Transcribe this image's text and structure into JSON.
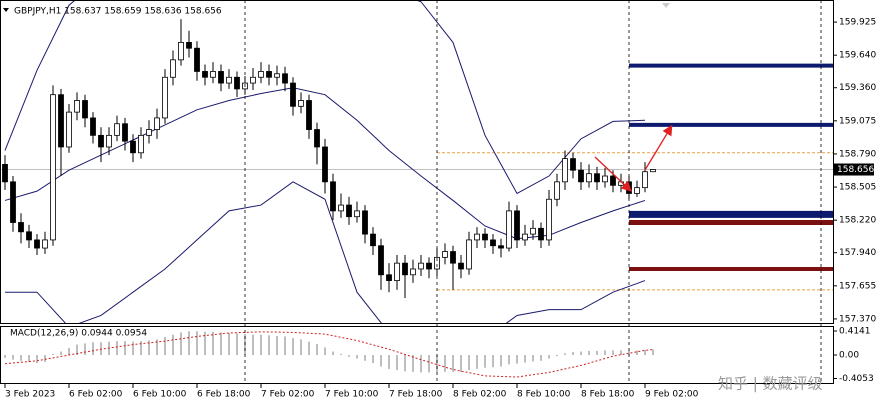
{
  "chart_data": {
    "type": "candlestick",
    "title": "GBPJPY,H1 158.637 158.659 158.636 158.656",
    "watermark": "知乎 | 数藏评级",
    "xlim": [
      -0.6,
      103.5
    ],
    "ylim": [
      157.335,
      160.115
    ],
    "yticks": [
      {
        "value": 159.925,
        "label": "159.925"
      },
      {
        "value": 159.64,
        "label": "159.640"
      },
      {
        "value": 159.36,
        "label": "159.360"
      },
      {
        "value": 159.075,
        "label": "159.075"
      },
      {
        "value": 158.79,
        "label": "158.790"
      },
      {
        "value": 158.505,
        "label": "158.505"
      },
      {
        "value": 158.22,
        "label": "158.220"
      },
      {
        "value": 157.94,
        "label": "157.940"
      },
      {
        "value": 157.655,
        "label": "157.655"
      },
      {
        "value": 157.37,
        "label": "157.370"
      }
    ],
    "x_labels": [
      {
        "value": 0,
        "label": "3 Feb 2023"
      },
      {
        "value": 8,
        "label": "6 Feb 02:00"
      },
      {
        "value": 16,
        "label": "6 Feb 10:00"
      },
      {
        "value": 24,
        "label": "6 Feb 18:00"
      },
      {
        "value": 32,
        "label": "7 Feb 02:00"
      },
      {
        "value": 40,
        "label": "7 Feb 10:00"
      },
      {
        "value": 48,
        "label": "7 Feb 18:00"
      },
      {
        "value": 56,
        "label": "8 Feb 02:00"
      },
      {
        "value": 64,
        "label": "8 Feb 10:00"
      },
      {
        "value": 72,
        "label": "8 Feb 18:00"
      },
      {
        "value": 80,
        "label": "9 Feb 02:00"
      }
    ],
    "separators": [
      30,
      54,
      78,
      102
    ],
    "open": [
      158.7,
      158.55,
      158.2,
      158.12,
      158.05,
      157.98,
      158.05,
      159.3,
      158.85,
      159.15,
      159.25,
      159.1,
      158.95,
      158.85,
      158.95,
      159.05,
      158.9,
      158.8,
      158.95,
      159.0,
      159.1,
      159.45,
      159.6,
      159.75,
      159.7,
      159.5,
      159.45,
      159.5,
      159.4,
      159.45,
      159.35,
      159.4,
      159.45,
      159.5,
      159.45,
      159.48,
      159.4,
      159.2,
      159.25,
      159.0,
      158.85,
      158.55,
      158.3,
      158.35,
      158.25,
      158.3,
      158.1,
      158.0,
      157.75,
      157.7,
      157.85,
      157.75,
      157.8,
      157.85,
      157.8,
      157.9,
      157.95,
      157.85,
      157.8,
      158.05,
      158.1,
      158.05,
      158.0,
      157.98,
      158.3,
      158.05,
      158.1,
      158.15,
      158.05,
      158.4,
      158.55,
      158.75,
      158.65,
      158.55,
      158.62,
      158.55,
      158.6,
      158.52,
      158.55,
      158.45,
      158.5,
      158.637
    ],
    "high": [
      158.78,
      158.6,
      158.28,
      158.18,
      158.1,
      158.12,
      159.38,
      159.35,
      159.22,
      159.32,
      159.3,
      159.15,
      159.02,
      159.02,
      159.12,
      159.1,
      158.96,
      159.02,
      159.08,
      159.18,
      159.52,
      159.68,
      159.95,
      159.85,
      159.76,
      159.56,
      159.58,
      159.56,
      159.52,
      159.5,
      159.46,
      159.53,
      159.58,
      159.56,
      159.55,
      159.54,
      159.45,
      159.32,
      159.3,
      159.06,
      158.92,
      158.62,
      158.45,
      158.42,
      158.38,
      158.35,
      158.16,
      158.06,
      157.85,
      157.92,
      157.92,
      157.88,
      157.92,
      157.9,
      157.98,
      158.02,
      158.0,
      157.92,
      158.12,
      158.16,
      158.15,
      158.1,
      158.06,
      158.38,
      158.35,
      158.18,
      158.22,
      158.2,
      158.48,
      158.62,
      158.82,
      158.8,
      158.72,
      158.7,
      158.68,
      158.67,
      158.65,
      158.62,
      158.6,
      158.56,
      158.72,
      158.659
    ],
    "low": [
      158.48,
      158.12,
      158.02,
      157.98,
      157.92,
      157.93,
      158.0,
      158.6,
      158.8,
      159.08,
      159.02,
      158.88,
      158.72,
      158.78,
      158.9,
      158.82,
      158.72,
      158.75,
      158.88,
      158.92,
      159.05,
      159.38,
      159.55,
      159.62,
      159.42,
      159.38,
      159.4,
      159.33,
      159.35,
      159.28,
      159.3,
      159.34,
      159.4,
      159.38,
      159.38,
      159.33,
      159.12,
      159.14,
      158.92,
      158.7,
      158.45,
      158.22,
      158.24,
      158.18,
      158.2,
      158.02,
      157.92,
      157.62,
      157.6,
      157.62,
      157.55,
      157.68,
      157.74,
      157.72,
      157.74,
      157.84,
      157.62,
      157.72,
      157.75,
      157.98,
      157.98,
      157.93,
      157.9,
      157.95,
      157.98,
      158.0,
      158.05,
      157.98,
      158.0,
      158.34,
      158.48,
      158.58,
      158.48,
      158.5,
      158.48,
      158.5,
      158.46,
      158.46,
      158.4,
      158.42,
      158.46,
      158.636
    ],
    "close": [
      158.55,
      158.2,
      158.12,
      158.05,
      157.98,
      158.05,
      159.3,
      158.85,
      159.15,
      159.25,
      159.1,
      158.95,
      158.85,
      158.95,
      159.05,
      158.9,
      158.8,
      158.95,
      159.0,
      159.1,
      159.45,
      159.6,
      159.75,
      159.7,
      159.5,
      159.45,
      159.5,
      159.4,
      159.45,
      159.35,
      159.4,
      159.45,
      159.5,
      159.45,
      159.48,
      159.4,
      159.2,
      159.25,
      159.0,
      158.85,
      158.55,
      158.3,
      158.35,
      158.25,
      158.3,
      158.1,
      158.0,
      157.75,
      157.7,
      157.85,
      157.75,
      157.8,
      157.85,
      157.8,
      157.9,
      157.95,
      157.85,
      157.8,
      158.05,
      158.1,
      158.05,
      158.0,
      157.98,
      158.3,
      158.05,
      158.1,
      158.15,
      158.05,
      158.4,
      158.55,
      158.75,
      158.65,
      158.55,
      158.62,
      158.55,
      158.6,
      158.52,
      158.55,
      158.45,
      158.5,
      158.637,
      158.656
    ],
    "bands": {
      "color": "#1a1a6e",
      "x": [
        0,
        4,
        8,
        12,
        16,
        20,
        24,
        28,
        32,
        36,
        40,
        44,
        48,
        52,
        56,
        60,
        64,
        68,
        72,
        76,
        80
      ],
      "upper": [
        158.82,
        159.51,
        160.07,
        160.3,
        160.4,
        160.4,
        160.4,
        160.35,
        160.3,
        160.3,
        160.15,
        160.2,
        160.2,
        160.1,
        159.75,
        158.95,
        158.45,
        158.6,
        158.92,
        159.07,
        159.08
      ],
      "middle": [
        158.39,
        158.47,
        158.65,
        158.78,
        158.91,
        159.04,
        159.17,
        159.25,
        159.31,
        159.36,
        159.3,
        159.08,
        158.82,
        158.6,
        158.39,
        158.17,
        158.06,
        158.09,
        158.2,
        158.3,
        158.39
      ],
      "lower": [
        157.6,
        157.6,
        157.3,
        157.4,
        157.6,
        157.8,
        158.05,
        158.3,
        158.35,
        158.55,
        158.4,
        157.6,
        157.25,
        157.15,
        157.15,
        157.2,
        157.4,
        157.45,
        157.45,
        157.6,
        157.7
      ]
    },
    "levels": [
      {
        "value": 159.55,
        "start": 78,
        "color": "#0d1a6e",
        "width": 4
      },
      {
        "value": 159.04,
        "start": 78,
        "color": "#0d1a6e",
        "width": 4
      },
      {
        "value": 158.27,
        "start": 78,
        "color": "#0d1a6e",
        "width": 7
      },
      {
        "value": 158.2,
        "start": 78,
        "color": "#7a1010",
        "width": 5
      },
      {
        "value": 157.8,
        "start": 78,
        "color": "#7a1010",
        "width": 4
      },
      {
        "value": 158.8,
        "start": 54,
        "color": "#e8a040",
        "width": 1
      },
      {
        "value": 157.62,
        "start": 54,
        "color": "#e8a040",
        "width": 1
      }
    ],
    "macd": {
      "label": "MACD(12,26,9) 0.0944 0.0954",
      "ylim": [
        -0.5,
        0.483
      ],
      "yticks": [
        0.4141,
        {
          "value": 0,
          "label": "0.00"
        },
        -0.4053
      ],
      "values": [
        -0.05,
        -0.08,
        -0.1,
        -0.12,
        -0.14,
        -0.12,
        0.02,
        0.06,
        0.12,
        0.18,
        0.2,
        0.22,
        0.22,
        0.23,
        0.24,
        0.24,
        0.23,
        0.24,
        0.25,
        0.27,
        0.31,
        0.35,
        0.39,
        0.41,
        0.41,
        0.4,
        0.4,
        0.39,
        0.38,
        0.37,
        0.36,
        0.35,
        0.35,
        0.34,
        0.33,
        0.32,
        0.29,
        0.27,
        0.23,
        0.19,
        0.13,
        0.06,
        0.02,
        -0.03,
        -0.06,
        -0.1,
        -0.14,
        -0.2,
        -0.24,
        -0.26,
        -0.28,
        -0.29,
        -0.3,
        -0.3,
        -0.3,
        -0.29,
        -0.29,
        -0.29,
        -0.26,
        -0.24,
        -0.22,
        -0.21,
        -0.2,
        -0.16,
        -0.15,
        -0.13,
        -0.11,
        -0.1,
        -0.06,
        -0.02,
        0.03,
        0.05,
        0.06,
        0.07,
        0.07,
        0.08,
        0.08,
        0.08,
        0.08,
        0.08,
        0.09,
        0.0944
      ],
      "signal_x": [
        0,
        4,
        8,
        12,
        16,
        20,
        24,
        28,
        32,
        36,
        40,
        44,
        48,
        52,
        56,
        60,
        64,
        68,
        72,
        76,
        80,
        81
      ],
      "signal": [
        -0.15,
        -0.1,
        0.0,
        0.1,
        0.18,
        0.24,
        0.32,
        0.38,
        0.4,
        0.39,
        0.36,
        0.25,
        0.1,
        -0.08,
        -0.25,
        -0.36,
        -0.38,
        -0.3,
        -0.18,
        -0.02,
        0.08,
        0.0954
      ],
      "color": "#a8a8a8",
      "signal_color": "#d02020"
    }
  }
}
